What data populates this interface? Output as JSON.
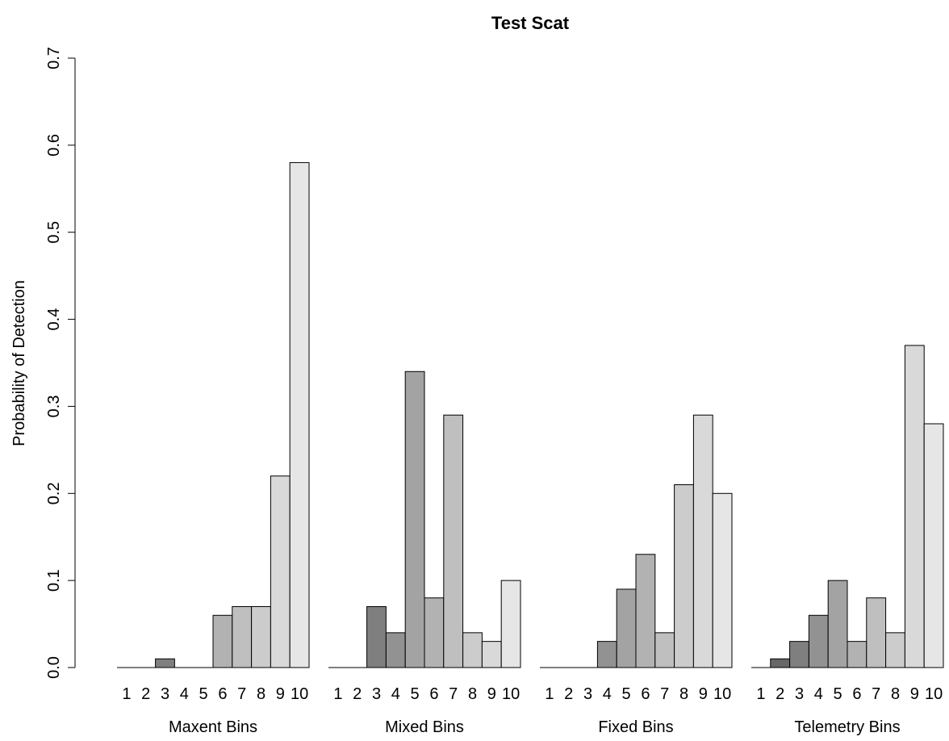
{
  "chart_data": {
    "type": "bar",
    "title": "Test Scat",
    "ylabel": "Probability of Detection",
    "ylim": [
      0,
      0.7
    ],
    "yticks": [
      0.0,
      0.1,
      0.2,
      0.3,
      0.4,
      0.5,
      0.6,
      0.7
    ],
    "ytick_labels": [
      "0.0",
      "0.1",
      "0.2",
      "0.3",
      "0.4",
      "0.5",
      "0.6",
      "0.7"
    ],
    "bin_labels": [
      "1",
      "2",
      "3",
      "4",
      "5",
      "6",
      "7",
      "8",
      "9",
      "10"
    ],
    "bin_colors": [
      "#4a4a4a",
      "#676767",
      "#7f7f7f",
      "#929292",
      "#a3a3a3",
      "#b2b2b2",
      "#bfbfbf",
      "#cccccc",
      "#d9d9d9",
      "#e6e6e6"
    ],
    "groups": [
      {
        "name": "Maxent Bins",
        "values": [
          0,
          0,
          0.01,
          0,
          0,
          0.06,
          0.07,
          0.07,
          0.22,
          0.58
        ]
      },
      {
        "name": "Mixed Bins",
        "values": [
          0,
          0,
          0.07,
          0.04,
          0.34,
          0.08,
          0.29,
          0.04,
          0.03,
          0.1
        ]
      },
      {
        "name": "Fixed Bins",
        "values": [
          0,
          0,
          0,
          0.03,
          0.09,
          0.13,
          0.04,
          0.21,
          0.29,
          0.2
        ]
      },
      {
        "name": "Telemetry Bins",
        "values": [
          0,
          0.01,
          0.03,
          0.06,
          0.1,
          0.03,
          0.08,
          0.04,
          0.37,
          0.28
        ]
      }
    ]
  }
}
